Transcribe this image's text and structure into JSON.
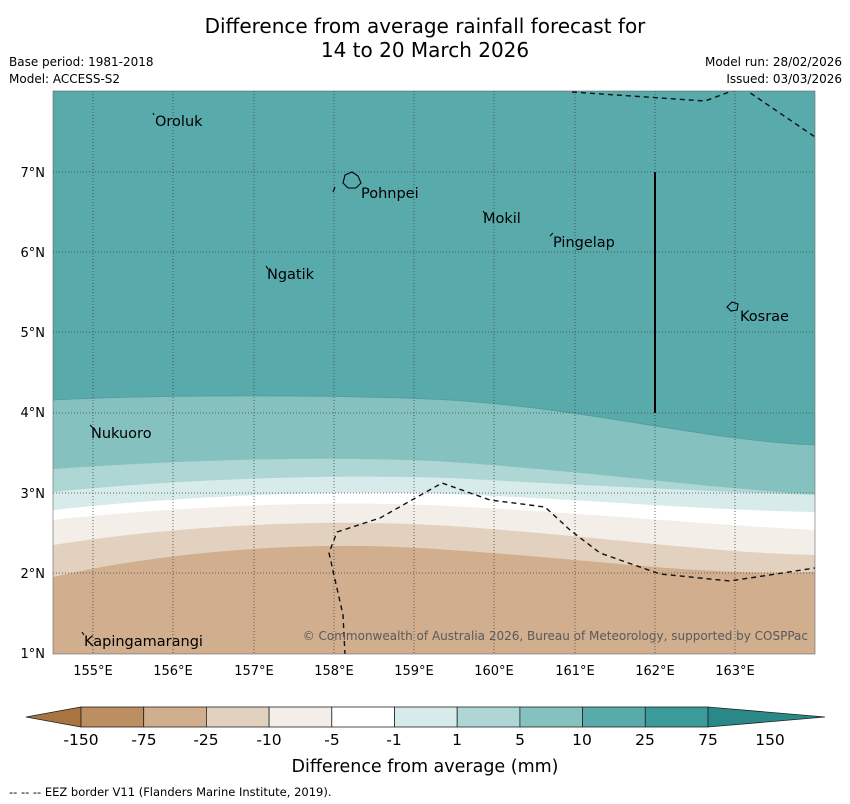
{
  "title": {
    "line1": "Difference from average rainfall forecast for",
    "line2": "14 to 20 March 2026"
  },
  "meta": {
    "base_period": "Base period: 1981-2018",
    "model": "Model: ACCESS-S2",
    "model_run": "Model run: 28/02/2026",
    "issued": "Issued: 03/03/2026"
  },
  "map": {
    "lon_ticks": [
      "155°E",
      "156°E",
      "157°E",
      "158°E",
      "159°E",
      "160°E",
      "161°E",
      "162°E",
      "163°E"
    ],
    "lat_ticks": [
      "7°N",
      "6°N",
      "5°N",
      "4°N",
      "3°N",
      "2°N",
      "1°N"
    ],
    "places": [
      {
        "name": "Oroluk"
      },
      {
        "name": "Pohnpei"
      },
      {
        "name": "Mokil"
      },
      {
        "name": "Pingelap"
      },
      {
        "name": "Ngatik"
      },
      {
        "name": "Kosrae"
      },
      {
        "name": "Nukuoro"
      },
      {
        "name": "Kapingamarangi"
      }
    ],
    "copyright": "© Commonwealth of Australia 2026, Bureau of Meteorology, supported by COSPPac"
  },
  "colorbar": {
    "ticks": [
      "-150",
      "-75",
      "-25",
      "-10",
      "-5",
      "-1",
      "1",
      "5",
      "10",
      "25",
      "75",
      "150"
    ],
    "colors": [
      "#a87440",
      "#bc8e62",
      "#d0ae8e",
      "#e3d1bf",
      "#f3eee8",
      "#ffffff",
      "#d6ebea",
      "#add6d5",
      "#84c1bf",
      "#59aaab",
      "#3b9b9b",
      "#2a8888"
    ],
    "label": "Difference from average (mm)"
  },
  "footer": "--  --  -- EEZ border V11 (Flanders Marine Institute, 2019)."
}
